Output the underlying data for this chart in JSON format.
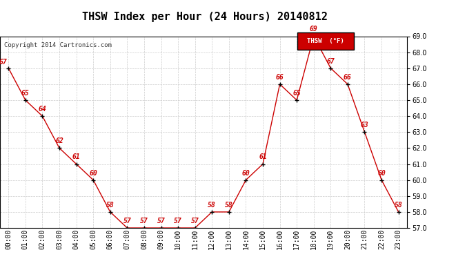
{
  "title": "THSW Index per Hour (24 Hours) 20140812",
  "copyright": "Copyright 2014 Cartronics.com",
  "legend_label": "THSW  (°F)",
  "hours": [
    0,
    1,
    2,
    3,
    4,
    5,
    6,
    7,
    8,
    9,
    10,
    11,
    12,
    13,
    14,
    15,
    16,
    17,
    18,
    19,
    20,
    21,
    22,
    23
  ],
  "values": [
    67,
    65,
    64,
    62,
    61,
    60,
    58,
    57,
    57,
    57,
    57,
    57,
    58,
    58,
    60,
    61,
    66,
    65,
    69,
    67,
    66,
    63,
    60,
    58
  ],
  "xlabels": [
    "00:00",
    "01:00",
    "02:00",
    "03:00",
    "04:00",
    "05:00",
    "06:00",
    "07:00",
    "08:00",
    "09:00",
    "10:00",
    "11:00",
    "12:00",
    "13:00",
    "14:00",
    "15:00",
    "16:00",
    "17:00",
    "18:00",
    "19:00",
    "20:00",
    "21:00",
    "22:00",
    "23:00"
  ],
  "ylim": [
    57.0,
    69.0
  ],
  "yticks": [
    57.0,
    58.0,
    59.0,
    60.0,
    61.0,
    62.0,
    63.0,
    64.0,
    65.0,
    66.0,
    67.0,
    68.0,
    69.0
  ],
  "line_color": "#cc0000",
  "label_color": "#cc0000",
  "marker_color": "#000000",
  "grid_color": "#cccccc",
  "legend_bg": "#cc0000",
  "legend_fg": "#ffffff",
  "bg_color": "#ffffff",
  "border_color": "#000000",
  "title_fontsize": 11,
  "label_fontsize": 7,
  "tick_fontsize": 7,
  "copyright_fontsize": 6.5
}
